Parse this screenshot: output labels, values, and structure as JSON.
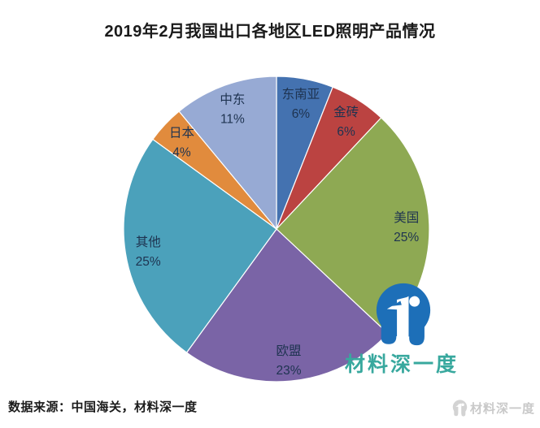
{
  "chart_data": {
    "type": "pie",
    "title": "2019年2月我国出口各地区LED照明产品情况",
    "unit": "%",
    "direction": "clockwise",
    "start_angle_deg": 0,
    "legend": "none",
    "categories": [
      "东南亚",
      "金砖",
      "美国",
      "欧盟",
      "其他",
      "日本",
      "中东"
    ],
    "values": [
      6,
      6,
      25,
      23,
      25,
      4,
      11
    ],
    "slices": [
      {
        "label": "东南亚",
        "value": 6,
        "pct_label": "6%",
        "color": "#4472b0"
      },
      {
        "label": "金砖",
        "value": 6,
        "pct_label": "6%",
        "color": "#bb4341"
      },
      {
        "label": "美国",
        "value": 25,
        "pct_label": "25%",
        "color": "#8ea953"
      },
      {
        "label": "欧盟",
        "value": 23,
        "pct_label": "23%",
        "color": "#7a64a6"
      },
      {
        "label": "其他",
        "value": 25,
        "pct_label": "25%",
        "color": "#4ba1bb"
      },
      {
        "label": "日本",
        "value": 4,
        "pct_label": "4%",
        "color": "#e18b3d"
      },
      {
        "label": "中东",
        "value": 11,
        "pct_label": "11%",
        "color": "#97aad4"
      }
    ],
    "label_color": "#1e3350",
    "label_radius_ratio": 0.85
  },
  "footer": {
    "source": "数据来源：中国海关，材料深一度"
  },
  "watermark": {
    "brand_text": "材料深一度",
    "brand_text_color": "#38a89e",
    "logo_color": "#1d6fb8",
    "corner_text": "材料深一度",
    "corner_text_color": "#c9c9c9"
  }
}
